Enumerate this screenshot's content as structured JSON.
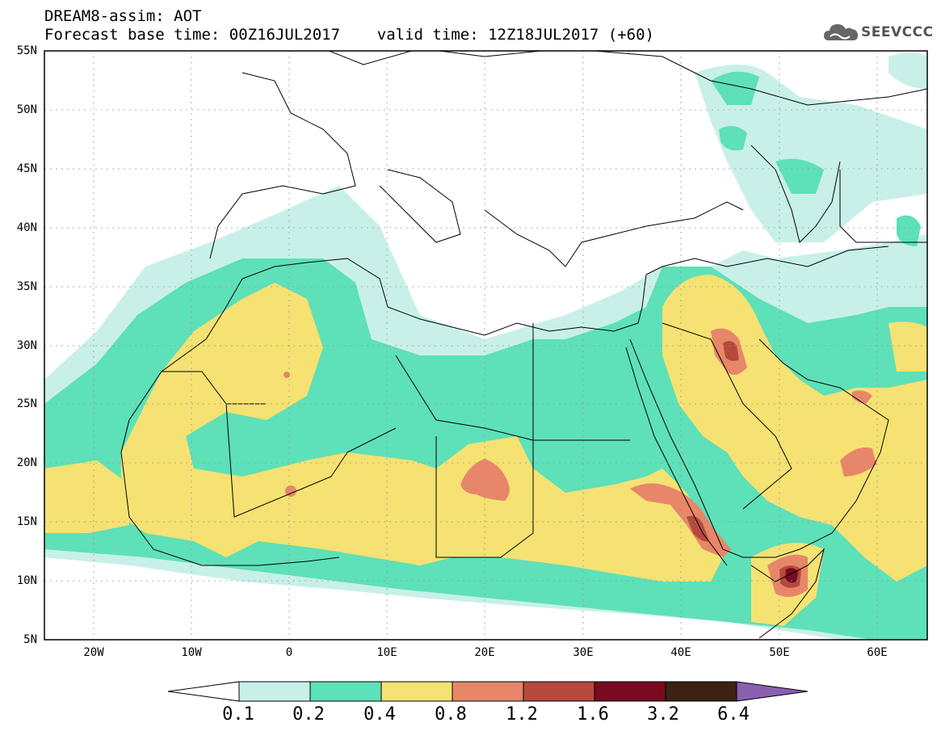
{
  "header": {
    "line1": "DREAM8-assim: AOT",
    "line2": "Forecast base time: 00Z16JUL2017    valid time: 12Z18JUL2017 (+60)"
  },
  "logo": {
    "text": "SEEVCCC",
    "icon": "cloud-icon"
  },
  "map": {
    "lat_labels": [
      "55N",
      "50N",
      "45N",
      "40N",
      "35N",
      "30N",
      "25N",
      "20N",
      "15N",
      "10N",
      "5N"
    ],
    "lon_labels": [
      "20W",
      "10W",
      "0",
      "10E",
      "20E",
      "30E",
      "40E",
      "50E",
      "60E"
    ],
    "extent": {
      "lon": [
        -25,
        65
      ],
      "lat": [
        5,
        55
      ]
    }
  },
  "legend": {
    "labels": [
      "0.1",
      "0.2",
      "0.4",
      "0.8",
      "1.2",
      "1.6",
      "3.2",
      "6.4"
    ],
    "colors": [
      "#ffffff",
      "#c8f0e8",
      "#5ee0b8",
      "#f5e272",
      "#e8866a",
      "#b54a3c",
      "#7a0a20",
      "#3c2214",
      "#8a5fb0"
    ]
  }
}
